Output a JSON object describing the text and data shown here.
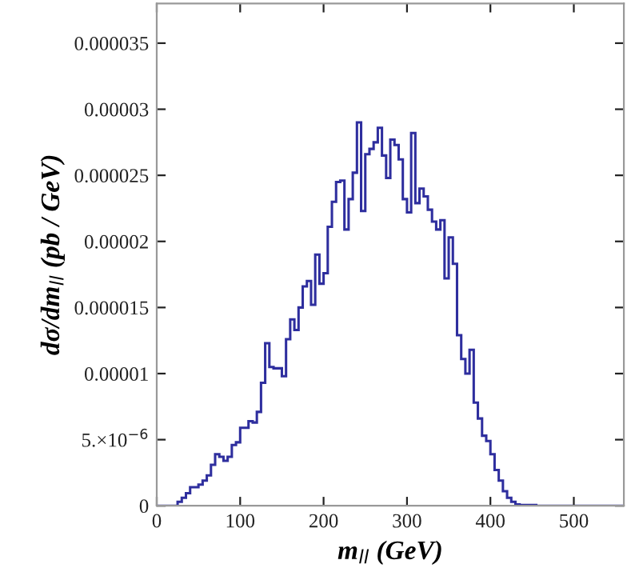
{
  "chart_data": {
    "type": "histogram",
    "xlabel": "m$_{ll}$ (GeV)",
    "ylabel": "dσ/dm$_{ll}$ (pb / GeV)",
    "color": "#2e2e9e",
    "bins": [
      0,
      5,
      10,
      15,
      20,
      25,
      30,
      35,
      40,
      45,
      50,
      55,
      60,
      65,
      70,
      75,
      80,
      85,
      90,
      95,
      100,
      105,
      110,
      115,
      120,
      125,
      130,
      135,
      140,
      145,
      150,
      155,
      160,
      165,
      170,
      175,
      180,
      185,
      190,
      195,
      200,
      205,
      210,
      215,
      220,
      225,
      230,
      235,
      240,
      245,
      250,
      255,
      260,
      265,
      270,
      275,
      280,
      285,
      290,
      295,
      300,
      305,
      310,
      315,
      320,
      325,
      330,
      335,
      340,
      345,
      350,
      355,
      360,
      365,
      370,
      375,
      380,
      385,
      390,
      395,
      400,
      405,
      410,
      415,
      420,
      425,
      430,
      435,
      440,
      445,
      450,
      455,
      460,
      465,
      470,
      475,
      480,
      485,
      490,
      495,
      500,
      505,
      510,
      515,
      520,
      525,
      530,
      535,
      540,
      545,
      550,
      555,
      560
    ],
    "values": [
      0,
      0,
      0,
      0,
      0,
      3e-07,
      6e-07,
      9.5e-07,
      1.4e-06,
      1.4e-06,
      1.6e-06,
      1.9e-06,
      2.3e-06,
      3.1e-06,
      3.9e-06,
      3.7e-06,
      3.4e-06,
      3.7e-06,
      4.6e-06,
      4.8e-06,
      5.9e-06,
      5.9e-06,
      6.4e-06,
      6.3e-06,
      7.1e-06,
      9.3e-06,
      1.23e-05,
      1.05e-05,
      1.04e-05,
      1.04e-05,
      9.8e-06,
      1.26e-05,
      1.41e-05,
      1.33e-05,
      1.5e-05,
      1.66e-05,
      1.7e-05,
      1.52e-05,
      1.9e-05,
      1.68e-05,
      1.76e-05,
      2.11e-05,
      2.3e-05,
      2.45e-05,
      2.46e-05,
      2.09e-05,
      2.32e-05,
      2.52e-05,
      2.9e-05,
      2.23e-05,
      2.66e-05,
      2.7e-05,
      2.75e-05,
      2.86e-05,
      2.65e-05,
      2.48e-05,
      2.77e-05,
      2.73e-05,
      2.62e-05,
      2.32e-05,
      2.22e-05,
      2.82e-05,
      2.29e-05,
      2.4e-05,
      2.34e-05,
      2.24e-05,
      2.15e-05,
      2.09e-05,
      2.16e-05,
      1.72e-05,
      2.03e-05,
      1.83e-05,
      1.29e-05,
      1.11e-05,
      1e-05,
      1.18e-05,
      7.8e-06,
      6.6e-06,
      5.3e-06,
      4.9e-06,
      3.9e-06,
      2.7e-06,
      1.9e-06,
      1.1e-06,
      6e-07,
      3e-07,
      1e-07,
      5e-08,
      5e-08,
      5e-08,
      5e-08,
      0,
      0,
      0,
      0,
      0,
      0,
      0,
      0,
      0,
      0,
      0,
      0,
      0,
      0,
      0,
      0,
      0,
      0,
      0,
      0,
      0
    ],
    "xlim": [
      0,
      560
    ],
    "xticks": [
      0,
      100,
      200,
      300,
      400,
      500
    ],
    "ylim": [
      0,
      3.8e-05
    ],
    "yticks": [
      0,
      {
        "value": 5e-06,
        "label": "5.×10$^{−6}$"
      },
      {
        "value": 1e-05,
        "label": "0.00001"
      },
      {
        "value": 1.5e-05,
        "label": "0.000015"
      },
      {
        "value": 2e-05,
        "label": "0.00002"
      },
      {
        "value": 2.5e-05,
        "label": "0.000025"
      },
      {
        "value": 3e-05,
        "label": "0.00003"
      },
      {
        "value": 3.5e-05,
        "label": "0.000035"
      }
    ],
    "grid": false
  }
}
